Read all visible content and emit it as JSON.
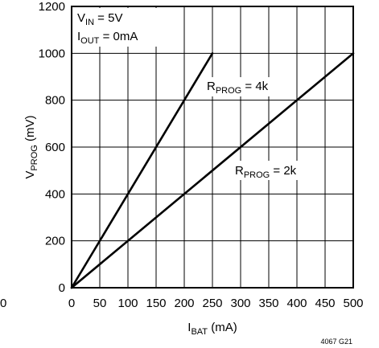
{
  "chart_data": {
    "type": "line",
    "title": "",
    "xlabel": {
      "main": "I",
      "sub": "BAT",
      "unit": " (mA)"
    },
    "ylabel": {
      "main": "V",
      "sub": "PROG",
      "unit": " (mV)"
    },
    "xlim": [
      0,
      500
    ],
    "ylim": [
      0,
      1200
    ],
    "x_ticks": [
      "0",
      "50",
      "100",
      "150",
      "200",
      "250",
      "300",
      "350",
      "400",
      "450",
      "500"
    ],
    "y_ticks": [
      "0",
      "200",
      "400",
      "600",
      "800",
      "1000",
      "1200"
    ],
    "grid": true,
    "series": [
      {
        "name": "RPROG = 4k",
        "label": {
          "main": "R",
          "sub": "PROG",
          "rest": " = 4k"
        },
        "x": [
          0,
          250
        ],
        "y": [
          0,
          1000
        ],
        "color": "#000000"
      },
      {
        "name": "RPROG = 2k",
        "label": {
          "main": "R",
          "sub": "PROG",
          "rest": " = 2k"
        },
        "x": [
          0,
          500
        ],
        "y": [
          0,
          1000
        ],
        "color": "#000000"
      }
    ],
    "conditions": [
      {
        "main": "V",
        "sub": "IN",
        "rest": " = 5V"
      },
      {
        "main": "I",
        "sub": "OUT",
        "rest": " = 0mA"
      }
    ],
    "figure_number": "4067 G21"
  },
  "corner_note": "0"
}
